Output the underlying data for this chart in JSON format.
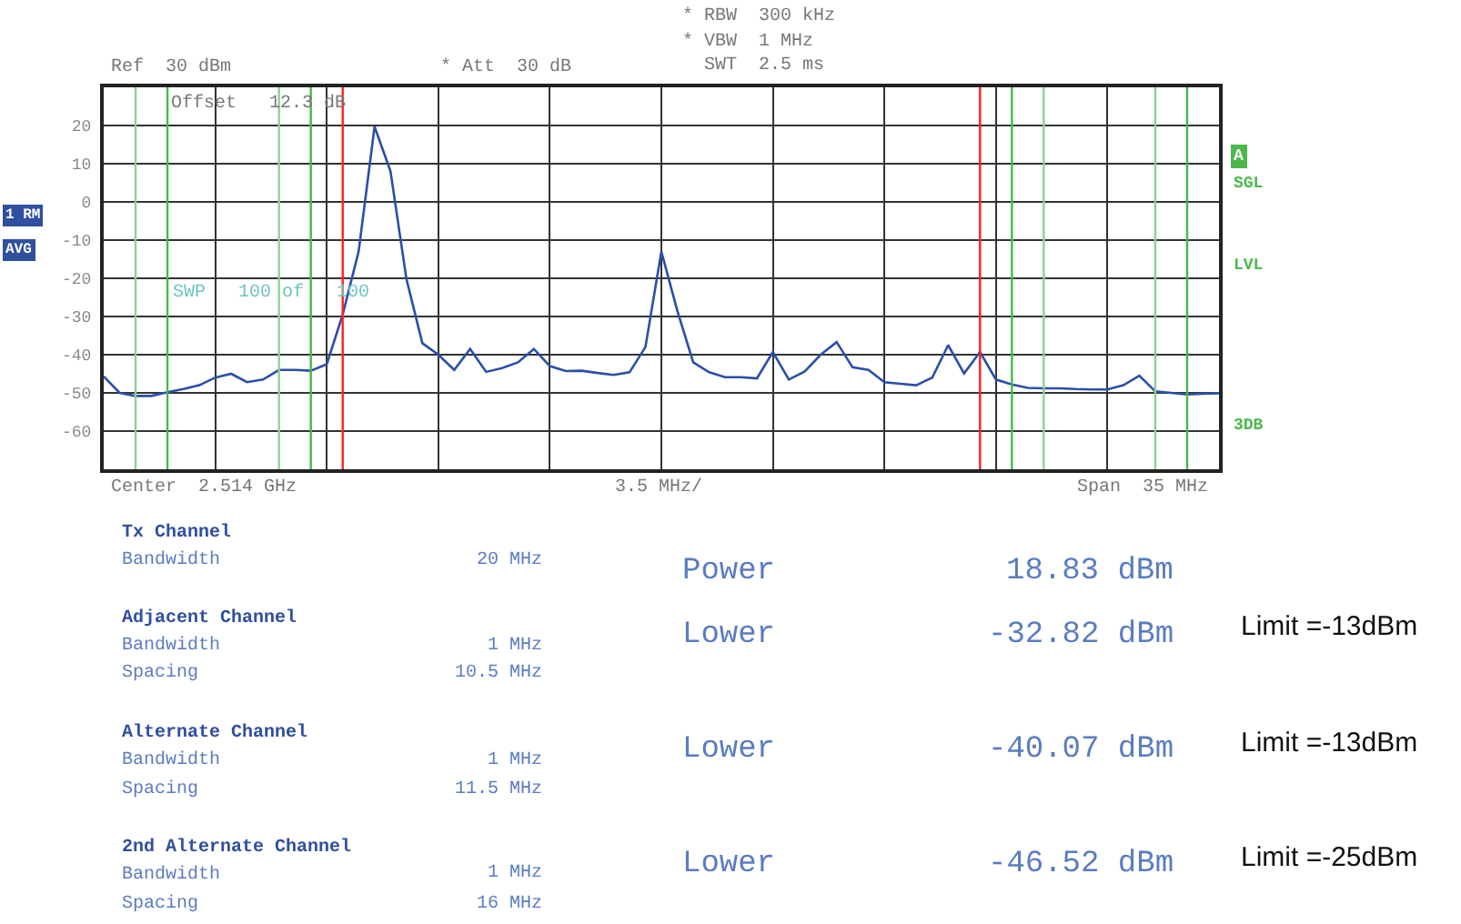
{
  "chart_data": {
    "type": "line",
    "categories": [
      null,
      null,
      null,
      null,
      null,
      null,
      null,
      null,
      null,
      null,
      null,
      null,
      null,
      null,
      null,
      null,
      null,
      null,
      null,
      null,
      null,
      null,
      null,
      null,
      null,
      null,
      null,
      null,
      null,
      null,
      null,
      null,
      null,
      null,
      null,
      null,
      null,
      null,
      null,
      null,
      null,
      null,
      null,
      null,
      null,
      null,
      null,
      null,
      null,
      null,
      null,
      null,
      null,
      null,
      null,
      null,
      null,
      null,
      null,
      null,
      null,
      null,
      null,
      null,
      null,
      null,
      null,
      null,
      null,
      null,
      null
    ],
    "series": [
      {
        "color": "#2a4fa8",
        "values": [
          -45.7,
          -50.0,
          -50.8,
          -50.8,
          -49.8,
          -49.0,
          -48.0,
          -46.0,
          -45.0,
          -47.2,
          -46.5,
          -44.0,
          -44.0,
          -44.2,
          -42.5,
          -29.5,
          -13.0,
          19.7,
          8.0,
          -20.2,
          -37.0,
          -40.0,
          -44.0,
          -38.5,
          -44.5,
          -43.5,
          -42.0,
          -38.5,
          -43.0,
          -44.3,
          -44.2,
          -44.8,
          -45.3,
          -44.6,
          -38.0,
          -13.0,
          -28.5,
          -42.0,
          -44.6,
          -45.9,
          -45.9,
          -46.2,
          -39.3,
          -46.5,
          -44.4,
          -40.0,
          -36.7,
          -43.3,
          -44.0,
          -47.2,
          -47.6,
          -48.0,
          -46.0,
          -37.5,
          -44.9,
          -39.3,
          -46.5,
          -47.8,
          -48.7,
          -48.8,
          -48.8,
          -49.0,
          -49.1,
          -49.1,
          -48.0,
          -45.5,
          -49.6,
          -50.0,
          -50.4,
          -50.2,
          -50.1
        ]
      }
    ],
    "ylim": [
      -70,
      30
    ],
    "yticks": [
      -60,
      -50,
      -40,
      -30,
      -20,
      -10,
      0,
      10,
      20
    ],
    "tick_labels": "y",
    "grid": true,
    "marker": "none",
    "line_style": "solid",
    "annotations": [
      "Ref  30 dBm",
      "* Att  30 dB",
      "* RBW  300 kHz",
      "* VBW  1 MHz",
      "SWT  2.5 ms",
      "Offset   12.3 dB",
      "SWP   100 of   100",
      "1 RM",
      "AVG",
      "A",
      "SGL",
      "LVL",
      "3DB",
      "Center  2.514 GHz",
      "3.5 MHz/",
      "Span  35 MHz",
      "Tx Channel",
      "Bandwidth",
      "20 MHz",
      "Adjacent Channel",
      "Bandwidth",
      "1 MHz",
      "Spacing",
      "10.5 MHz",
      "Alternate Channel",
      "Bandwidth",
      "1 MHz",
      "Spacing",
      "11.5 MHz",
      "2nd Alternate Channel",
      "Bandwidth",
      "1 MHz",
      "Spacing",
      "16 MHz",
      "Power",
      "18.83 dBm",
      "Lower",
      "-32.82 dBm",
      "Limit =-13dBm",
      "Lower",
      "-40.07 dBm",
      "Limit =-13dBm",
      "Lower",
      "-46.52 dBm",
      "Limit =-25dBm"
    ]
  }
}
